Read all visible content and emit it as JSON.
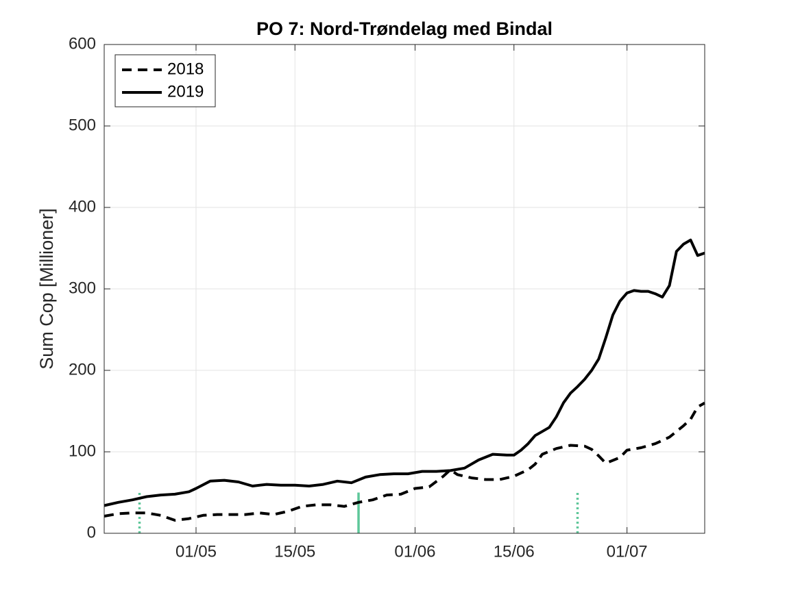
{
  "chart_data": {
    "type": "line",
    "title": "PO 7: Nord-Trøndelag med Bindal",
    "ylabel": "Sum Cop [Millioner]",
    "xlim": [
      "18/04",
      "12/07"
    ],
    "xticks": [
      "01/05",
      "15/05",
      "01/06",
      "15/06",
      "01/07"
    ],
    "ylim": [
      0,
      600
    ],
    "yticks": [
      0,
      100,
      200,
      300,
      400,
      500,
      600
    ],
    "grid": true,
    "legend": "northwest",
    "series": [
      {
        "name": "2018",
        "color": "#000000",
        "style": "dashed",
        "x": [
          "18/04",
          "20/04",
          "22/04",
          "24/04",
          "26/04",
          "28/04",
          "30/04",
          "02/05",
          "04/05",
          "06/05",
          "08/05",
          "10/05",
          "12/05",
          "14/05",
          "16/05",
          "18/05",
          "20/05",
          "22/05",
          "24/05",
          "26/05",
          "28/05",
          "30/05",
          "01/06",
          "03/06",
          "05/06",
          "06/06",
          "07/06",
          "09/06",
          "11/06",
          "13/06",
          "15/06",
          "17/06",
          "18/06",
          "19/06",
          "21/06",
          "23/06",
          "25/06",
          "26/06",
          "27/06",
          "28/06",
          "30/06",
          "01/07",
          "03/07",
          "05/07",
          "07/07",
          "09/07",
          "10/07",
          "11/07",
          "12/07"
        ],
        "values": [
          21,
          24,
          25,
          25,
          22,
          16,
          18,
          22,
          23,
          23,
          23,
          25,
          23,
          27,
          33,
          35,
          35,
          33,
          38,
          41,
          47,
          48,
          55,
          57,
          70,
          78,
          72,
          68,
          66,
          66,
          70,
          78,
          85,
          97,
          104,
          108,
          107,
          103,
          95,
          86,
          93,
          102,
          105,
          110,
          118,
          132,
          140,
          155,
          160
        ]
      },
      {
        "name": "2019",
        "color": "#000000",
        "style": "solid",
        "x": [
          "18/04",
          "20/04",
          "22/04",
          "24/04",
          "26/04",
          "28/04",
          "30/04",
          "01/05",
          "03/05",
          "05/05",
          "07/05",
          "09/05",
          "11/05",
          "13/05",
          "15/05",
          "17/05",
          "19/05",
          "21/05",
          "23/05",
          "25/05",
          "27/05",
          "29/05",
          "31/05",
          "02/06",
          "04/06",
          "06/06",
          "08/06",
          "10/06",
          "12/06",
          "14/06",
          "15/06",
          "16/06",
          "17/06",
          "18/06",
          "19/06",
          "20/06",
          "21/06",
          "22/06",
          "23/06",
          "24/06",
          "25/06",
          "26/06",
          "27/06",
          "28/06",
          "29/06",
          "30/06",
          "01/07",
          "02/07",
          "03/07",
          "04/07",
          "05/07",
          "06/07",
          "07/07",
          "08/07",
          "09/07",
          "10/07",
          "11/07",
          "12/07"
        ],
        "values": [
          34,
          38,
          41,
          45,
          47,
          48,
          51,
          55,
          64,
          65,
          63,
          58,
          60,
          59,
          59,
          58,
          60,
          64,
          62,
          69,
          72,
          73,
          73,
          76,
          76,
          77,
          80,
          90,
          97,
          96,
          96,
          102,
          110,
          120,
          125,
          130,
          143,
          160,
          172,
          180,
          189,
          200,
          214,
          240,
          268,
          285,
          295,
          298,
          297,
          297,
          294,
          290,
          304,
          346,
          355,
          360,
          341,
          344
        ]
      }
    ],
    "vlines": [
      {
        "x": "23/04",
        "ymax": 50,
        "color": "#5ec79a",
        "style": "dotted"
      },
      {
        "x": "24/05",
        "ymax": 50,
        "color": "#5ec79a",
        "style": "solid"
      },
      {
        "x": "24/06",
        "ymax": 50,
        "color": "#5ec79a",
        "style": "dotted"
      }
    ]
  }
}
